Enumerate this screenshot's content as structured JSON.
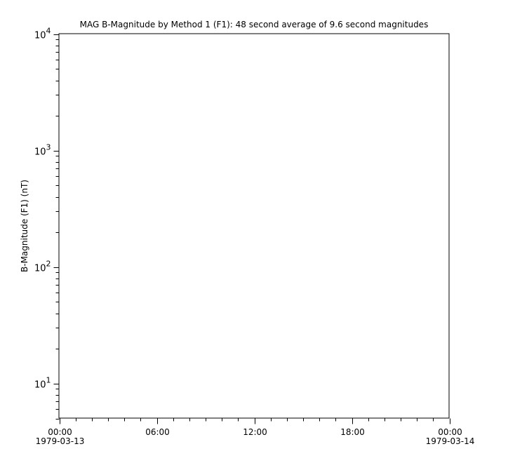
{
  "chart_data": {
    "type": "line",
    "title": "MAG  B-Magnitude by Method 1 (F1): 48 second average of 9.6 second magnitudes",
    "ylabel": "B-Magnitude (F1) (nT)",
    "xlabel": "",
    "yscale": "log",
    "ylim": [
      5,
      10000
    ],
    "y_ticks": [
      {
        "value": 10,
        "base": "10",
        "exp": "1"
      },
      {
        "value": 100,
        "base": "10",
        "exp": "2"
      },
      {
        "value": 1000,
        "base": "10",
        "exp": "3"
      },
      {
        "value": 10000,
        "base": "10",
        "exp": "4"
      }
    ],
    "xlim_hours": [
      0,
      24
    ],
    "x_ticks": [
      {
        "hour": 0,
        "time": "00:00",
        "date": "1979-03-13"
      },
      {
        "hour": 6,
        "time": "06:00",
        "date": ""
      },
      {
        "hour": 12,
        "time": "12:00",
        "date": ""
      },
      {
        "hour": 18,
        "time": "18:00",
        "date": ""
      },
      {
        "hour": 24,
        "time": "00:00",
        "date": "1979-03-14"
      }
    ],
    "x_minor_tick_interval_hours": 1,
    "grid": false,
    "series": []
  }
}
